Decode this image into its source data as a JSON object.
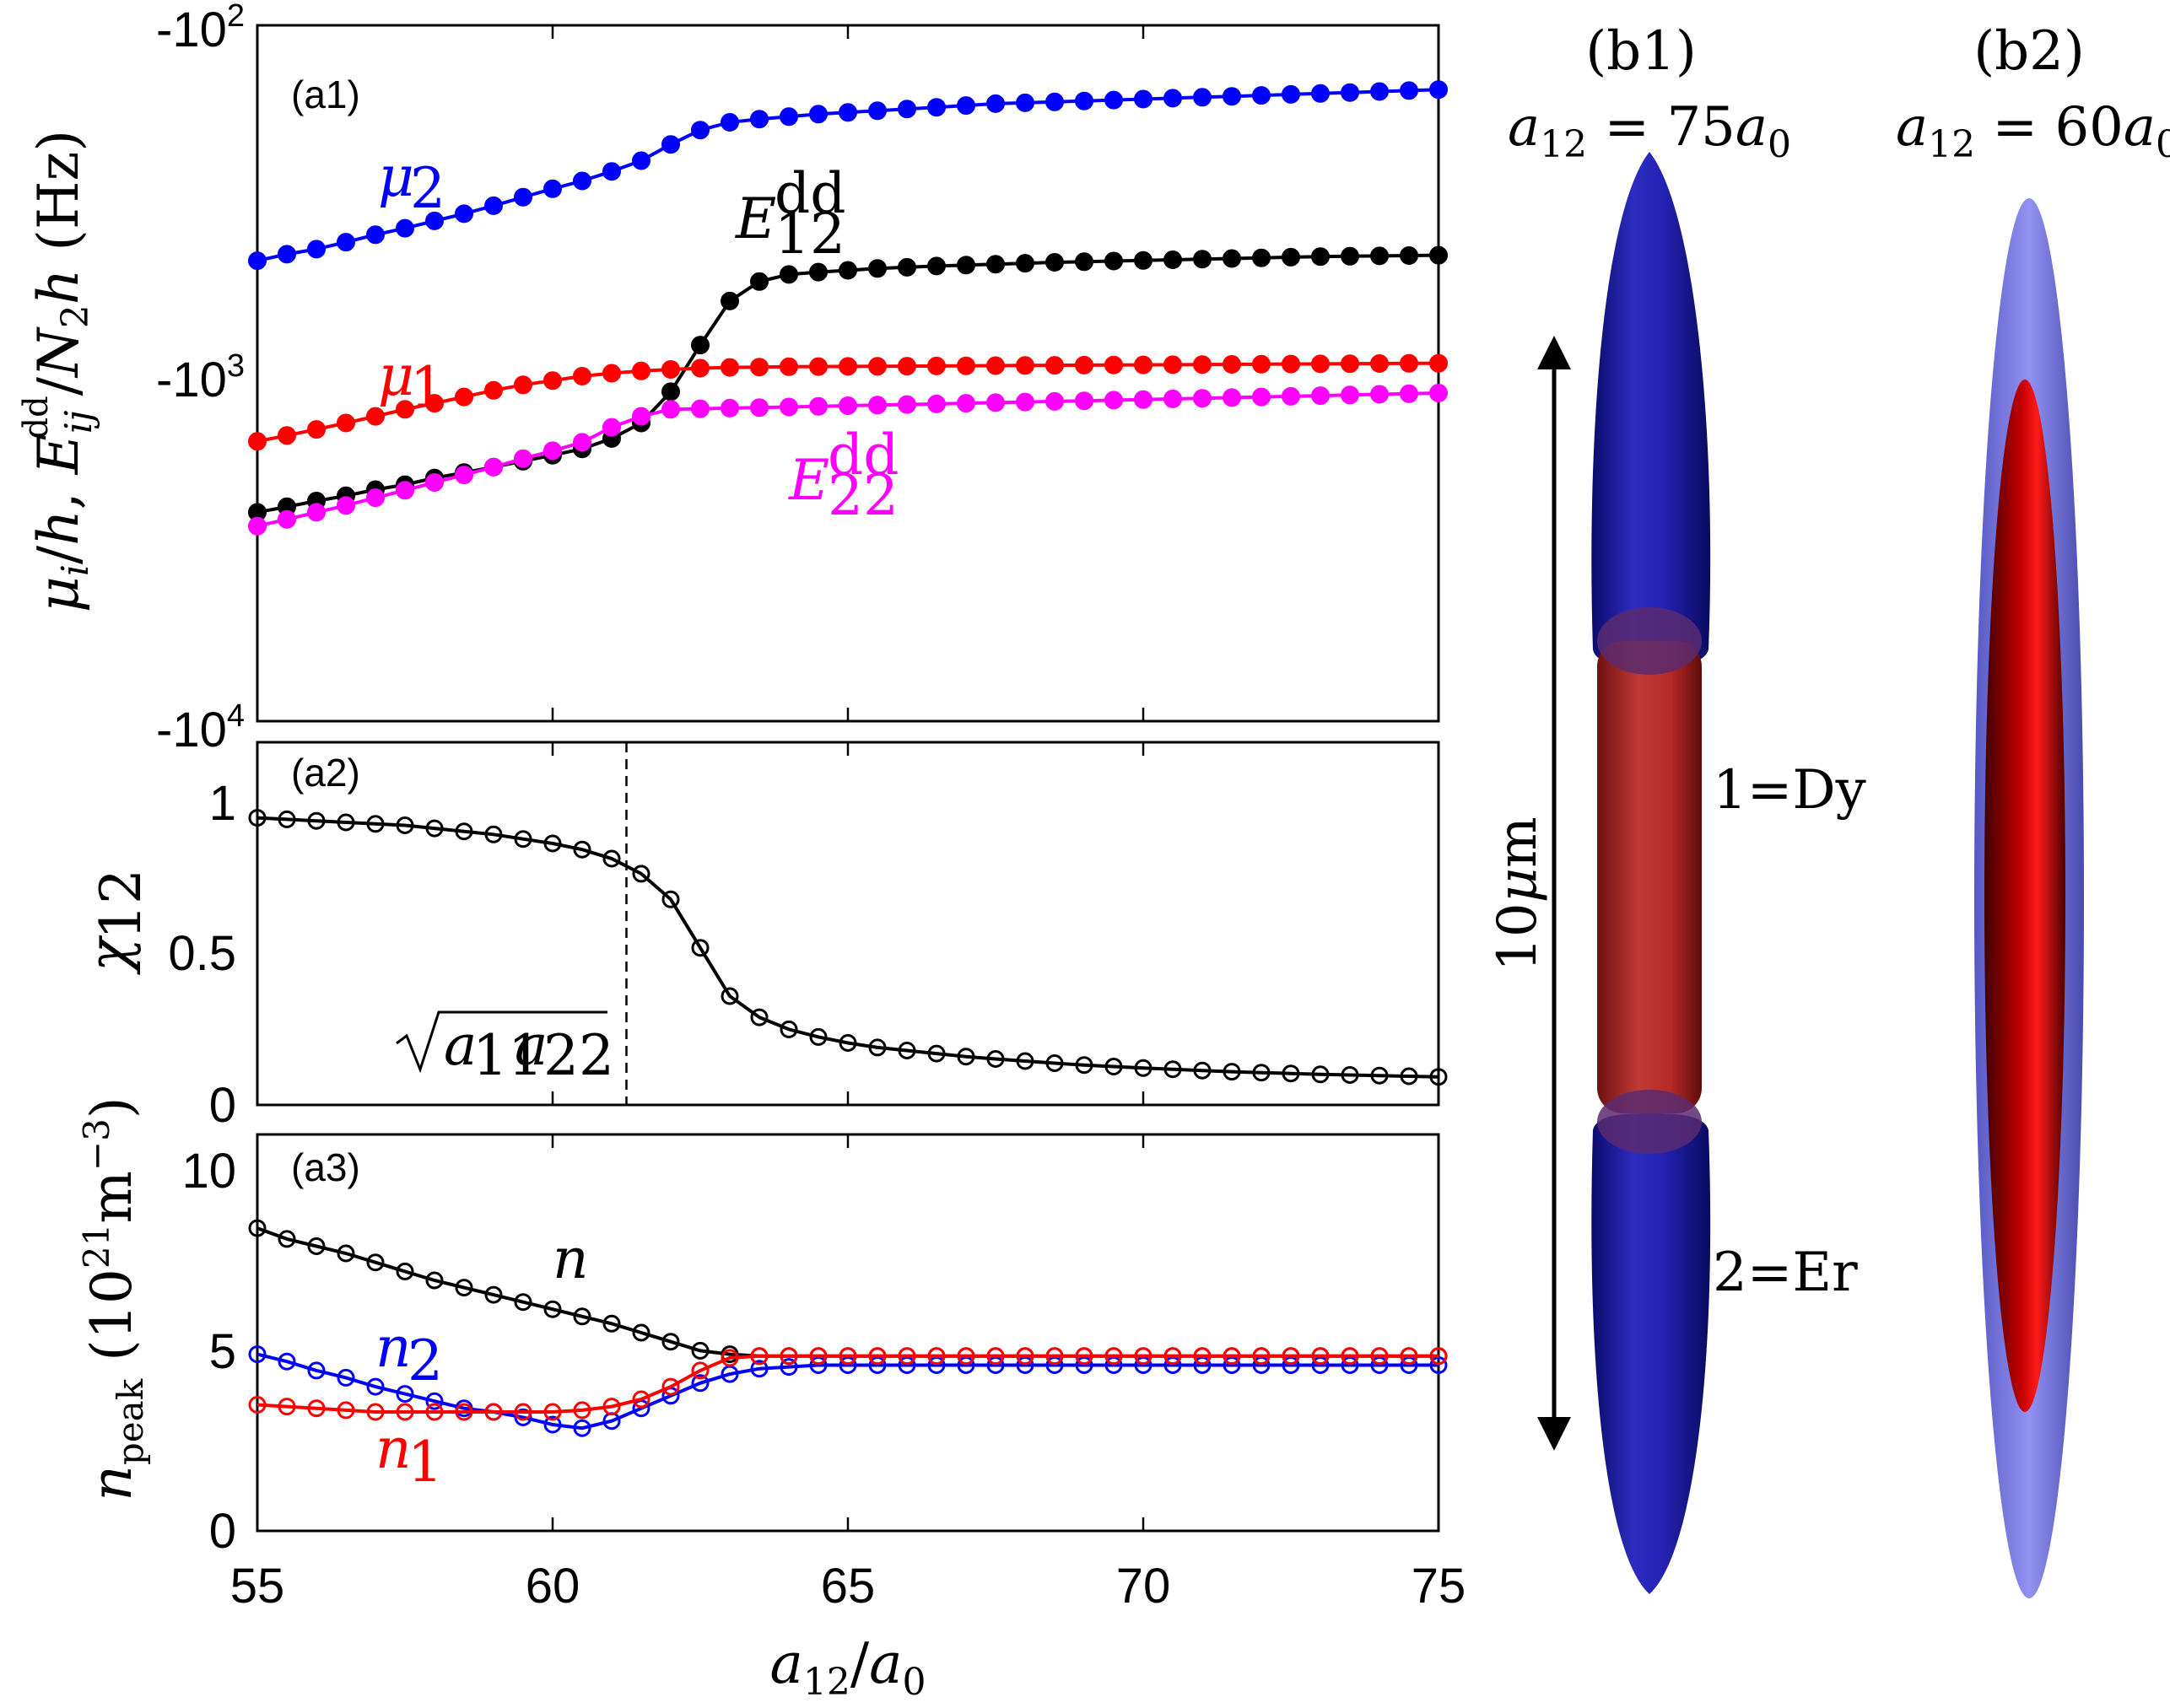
{
  "chart_data": [
    {
      "panel": "a1",
      "type": "line",
      "panel_label": "(a1)",
      "ylabel": "μ_i/h, E_ij^dd/N_2 h (Hz)",
      "yscale": "log",
      "ylim": [
        -10000,
        -100
      ],
      "yticks": [
        {
          "value": -100,
          "base": "-10",
          "exp": "2"
        },
        {
          "value": -1000,
          "base": "-10",
          "exp": "3"
        },
        {
          "value": -10000,
          "base": "-10",
          "exp": "4"
        }
      ],
      "xlim": [
        55,
        75
      ],
      "x": [
        55,
        55.5,
        56,
        56.5,
        57,
        57.5,
        58,
        58.5,
        59,
        59.5,
        60,
        60.5,
        61,
        61.5,
        62,
        62.5,
        63,
        63.5,
        64,
        64.5,
        65,
        65.5,
        66,
        66.5,
        67,
        67.5,
        68,
        68.5,
        69,
        69.5,
        70,
        70.5,
        71,
        71.5,
        72,
        72.5,
        73,
        73.5,
        74,
        74.5,
        75
      ],
      "series": [
        {
          "name": "mu2",
          "label_base": "μ",
          "label_sub": "2",
          "color": "#0000ff",
          "marker": "filled",
          "values": [
            -475,
            -455,
            -440,
            -420,
            -400,
            -383,
            -365,
            -348,
            -330,
            -312,
            -295,
            -280,
            -263,
            -245,
            -220,
            -200,
            -190,
            -186,
            -183,
            -180,
            -178,
            -176,
            -174,
            -172,
            -170,
            -168,
            -167,
            -166,
            -165,
            -164,
            -163,
            -162,
            -161,
            -160,
            -159,
            -158,
            -157,
            -156,
            -155,
            -154,
            -153
          ]
        },
        {
          "name": "E12dd",
          "label_base": "E",
          "label_sub": "12",
          "label_sup": "dd",
          "color": "#000000",
          "marker": "filled",
          "values": [
            -2510,
            -2420,
            -2330,
            -2250,
            -2160,
            -2090,
            -2000,
            -1930,
            -1860,
            -1790,
            -1720,
            -1650,
            -1540,
            -1390,
            -1130,
            -830,
            -620,
            -545,
            -520,
            -512,
            -506,
            -500,
            -496,
            -492,
            -489,
            -486,
            -483,
            -480,
            -478,
            -476,
            -474,
            -472,
            -470,
            -468,
            -466,
            -464,
            -462,
            -461,
            -460,
            -459,
            -458
          ]
        },
        {
          "name": "mu1",
          "label_base": "μ",
          "label_sub": "1",
          "color": "#ff0000",
          "marker": "filled",
          "values": [
            -1570,
            -1510,
            -1450,
            -1390,
            -1330,
            -1270,
            -1220,
            -1170,
            -1120,
            -1080,
            -1050,
            -1020,
            -1000,
            -985,
            -975,
            -967,
            -962,
            -960,
            -958,
            -957,
            -956,
            -955,
            -954,
            -953,
            -952,
            -951,
            -950,
            -949,
            -948,
            -947,
            -946,
            -945,
            -944,
            -943,
            -942,
            -941,
            -940,
            -939,
            -938,
            -937,
            -936
          ]
        },
        {
          "name": "E22dd",
          "label_base": "E",
          "label_sub": "22",
          "label_sup": "dd",
          "color": "#ff00ff",
          "marker": "filled",
          "values": [
            -2750,
            -2630,
            -2510,
            -2400,
            -2280,
            -2170,
            -2060,
            -1960,
            -1860,
            -1760,
            -1670,
            -1580,
            -1430,
            -1330,
            -1270,
            -1265,
            -1260,
            -1255,
            -1250,
            -1245,
            -1240,
            -1235,
            -1230,
            -1225,
            -1220,
            -1215,
            -1210,
            -1205,
            -1200,
            -1195,
            -1190,
            -1185,
            -1180,
            -1175,
            -1170,
            -1165,
            -1160,
            -1155,
            -1150,
            -1145,
            -1140
          ]
        }
      ]
    },
    {
      "panel": "a2",
      "type": "line",
      "panel_label": "(a2)",
      "ylabel": "χ12",
      "ylim": [
        0,
        1.2
      ],
      "yticks": [
        "0",
        "0.5",
        "1"
      ],
      "xlim": [
        55,
        75
      ],
      "vline_x": 61.25,
      "annotation": "√(a11 a22)",
      "x": [
        55,
        55.5,
        56,
        56.5,
        57,
        57.5,
        58,
        58.5,
        59,
        59.5,
        60,
        60.5,
        61,
        61.5,
        62,
        62.5,
        63,
        63.5,
        64,
        64.5,
        65,
        65.5,
        66,
        66.5,
        67,
        67.5,
        68,
        68.5,
        69,
        69.5,
        70,
        70.5,
        71,
        71.5,
        72,
        72.5,
        73,
        73.5,
        74,
        74.5,
        75
      ],
      "series": [
        {
          "name": "chi12",
          "color": "#000000",
          "marker": "open",
          "values": [
            0.95,
            0.945,
            0.94,
            0.935,
            0.93,
            0.925,
            0.915,
            0.905,
            0.895,
            0.88,
            0.865,
            0.845,
            0.815,
            0.765,
            0.68,
            0.52,
            0.36,
            0.29,
            0.25,
            0.225,
            0.205,
            0.19,
            0.18,
            0.17,
            0.16,
            0.152,
            0.145,
            0.138,
            0.132,
            0.127,
            0.122,
            0.118,
            0.114,
            0.11,
            0.107,
            0.104,
            0.101,
            0.099,
            0.097,
            0.095,
            0.093
          ]
        }
      ]
    },
    {
      "panel": "a3",
      "type": "line",
      "panel_label": "(a3)",
      "ylabel": "n_peak (10^21 m^-3)",
      "ylim": [
        0,
        11
      ],
      "yticks": [
        "0",
        "5",
        "10"
      ],
      "xlim": [
        55,
        75
      ],
      "xticks": [
        "55",
        "60",
        "65",
        "70",
        "75"
      ],
      "xlabel": "a12/a0",
      "x": [
        55,
        55.5,
        56,
        56.5,
        57,
        57.5,
        58,
        58.5,
        59,
        59.5,
        60,
        60.5,
        61,
        61.5,
        62,
        62.5,
        63,
        63.5,
        64,
        64.5,
        65,
        65.5,
        66,
        66.5,
        67,
        67.5,
        68,
        68.5,
        69,
        69.5,
        70,
        70.5,
        71,
        71.5,
        72,
        72.5,
        73,
        73.5,
        74,
        74.5,
        75
      ],
      "series": [
        {
          "name": "n",
          "label_base": "n",
          "color": "#000000",
          "marker": "open",
          "values": [
            8.4,
            8.1,
            7.9,
            7.7,
            7.45,
            7.2,
            6.95,
            6.75,
            6.55,
            6.35,
            6.15,
            5.95,
            5.75,
            5.5,
            5.25,
            5.0,
            4.9,
            4.85,
            4.85,
            4.85,
            4.85,
            4.85,
            4.85,
            4.85,
            4.85,
            4.85,
            4.85,
            4.85,
            4.85,
            4.85,
            4.85,
            4.85,
            4.85,
            4.85,
            4.85,
            4.85,
            4.85,
            4.85,
            4.85,
            4.85,
            4.85
          ]
        },
        {
          "name": "n2",
          "label_base": "n",
          "label_sub": "2",
          "color": "#0000ff",
          "marker": "open",
          "values": [
            4.9,
            4.7,
            4.45,
            4.25,
            4.0,
            3.8,
            3.6,
            3.4,
            3.3,
            3.15,
            2.95,
            2.85,
            3.05,
            3.4,
            3.75,
            4.1,
            4.35,
            4.5,
            4.55,
            4.6,
            4.6,
            4.6,
            4.6,
            4.6,
            4.6,
            4.6,
            4.6,
            4.6,
            4.6,
            4.6,
            4.6,
            4.6,
            4.6,
            4.6,
            4.6,
            4.6,
            4.6,
            4.6,
            4.6,
            4.6,
            4.6
          ]
        },
        {
          "name": "n1",
          "label_base": "n",
          "label_sub": "1",
          "color": "#ff0000",
          "marker": "open",
          "values": [
            3.5,
            3.45,
            3.4,
            3.35,
            3.3,
            3.3,
            3.3,
            3.3,
            3.3,
            3.3,
            3.3,
            3.35,
            3.45,
            3.65,
            4.0,
            4.45,
            4.8,
            4.85,
            4.85,
            4.85,
            4.85,
            4.85,
            4.85,
            4.85,
            4.85,
            4.85,
            4.85,
            4.85,
            4.85,
            4.85,
            4.85,
            4.85,
            4.85,
            4.85,
            4.85,
            4.85,
            4.85,
            4.85,
            4.85,
            4.85,
            4.85
          ]
        }
      ]
    }
  ],
  "density_panels": {
    "b1": {
      "label": "(b1)",
      "param": "a12 = 75a0",
      "scale_bar": "10μm",
      "species1": "1=Dy",
      "species2": "2=Er",
      "color1": "#c0201e",
      "color2": "#1e1ea8"
    },
    "b2": {
      "label": "(b2)",
      "param": "a12 = 60a0"
    }
  }
}
